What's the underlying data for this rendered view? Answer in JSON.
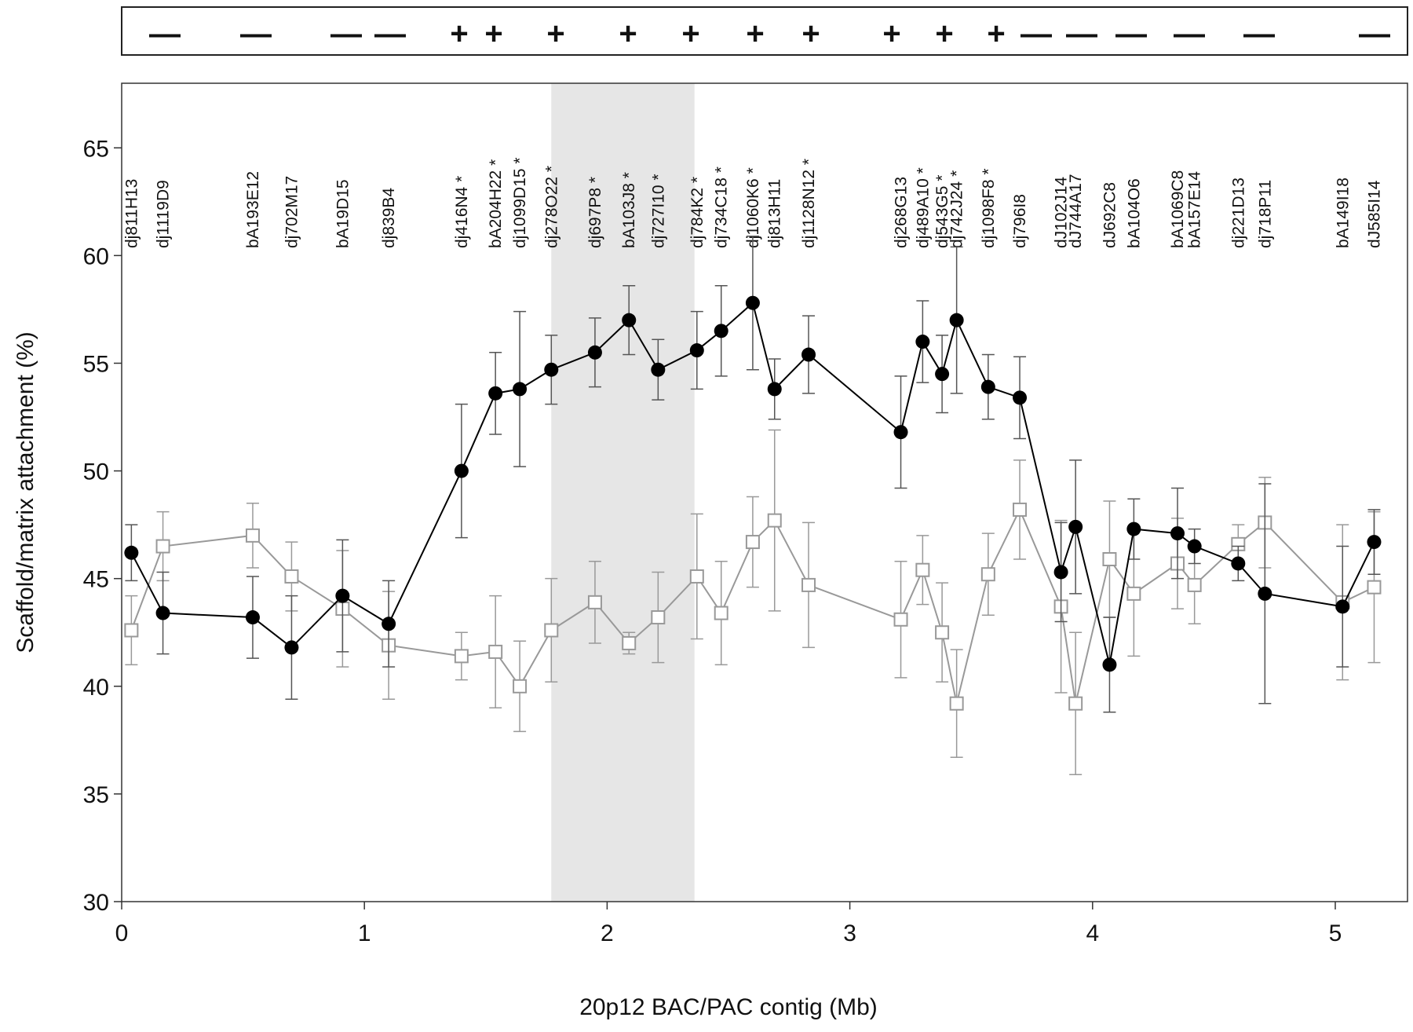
{
  "chart_data": {
    "type": "line",
    "xlabel": "20p12 BAC/PAC contig (Mb)",
    "ylabel": "Scaffold/matrix attachment (%)",
    "xlim": [
      0,
      5.3
    ],
    "ylim": [
      30,
      68
    ],
    "xticks": [
      0,
      1,
      2,
      3,
      4,
      5
    ],
    "yticks": [
      30,
      35,
      40,
      45,
      50,
      55,
      60,
      65
    ],
    "shaded_region": [
      1.77,
      2.36
    ],
    "signs": [
      "—",
      "—",
      "—",
      "—",
      "+",
      "+",
      "+",
      "+",
      "+",
      "+",
      "+",
      "+",
      "+",
      "+",
      "—",
      "—",
      "—",
      "—",
      "—",
      "—"
    ],
    "x": [
      0.04,
      0.17,
      0.54,
      0.7,
      0.91,
      1.1,
      1.4,
      1.54,
      1.64,
      1.77,
      1.95,
      2.09,
      2.21,
      2.37,
      2.47,
      2.6,
      2.69,
      2.83,
      3.21,
      3.3,
      3.38,
      3.44,
      3.57,
      3.7,
      3.87,
      3.93,
      4.07,
      4.17,
      4.35,
      4.42,
      4.6,
      4.71,
      5.03,
      5.16
    ],
    "clone_labels": [
      "dj811H13",
      "dj1119D9",
      "bA193E12",
      "dj702M17",
      "bA19D15",
      "dj839B4",
      "dj416N4 *",
      "bA204H22 *",
      "dj1099D15 *",
      "dj278O22 *",
      "dj697P8 *",
      "bA103J8 *",
      "dj727I10 *",
      "dj784K2 *",
      "dj734C18 *",
      "dj1060K6 *",
      "dj813H11",
      "dj1128N12 *",
      "dj268G13",
      "dj489A10 *",
      "dj543G5 *",
      "dj742J24 *",
      "dj1098F8 *",
      "dj796I8",
      "dJ102J14",
      "dJ744A17",
      "dJ692C8",
      "bA104O6",
      "bA1069C8",
      "bA157E14",
      "dj221D13",
      "dj718P11",
      "bA149I18",
      "dJ585I14"
    ],
    "series": [
      {
        "color": "#000000",
        "marker": "circle",
        "error_color": "#555555",
        "values": [
          46.2,
          43.4,
          43.2,
          41.8,
          44.2,
          42.9,
          50.0,
          53.6,
          53.8,
          54.7,
          55.5,
          57.0,
          54.7,
          55.6,
          56.5,
          57.8,
          53.8,
          55.4,
          51.8,
          56.0,
          54.5,
          57.0,
          53.9,
          53.4,
          45.3,
          47.4,
          41.0,
          47.3,
          47.1,
          46.5,
          45.7,
          44.3,
          43.7,
          46.7
        ],
        "errors": [
          1.3,
          1.9,
          1.9,
          2.4,
          2.6,
          2.0,
          3.1,
          1.9,
          3.6,
          1.6,
          1.6,
          1.6,
          1.4,
          1.8,
          2.1,
          3.1,
          1.4,
          1.8,
          2.6,
          1.9,
          1.8,
          3.4,
          1.5,
          1.9,
          2.3,
          3.1,
          2.2,
          1.4,
          2.1,
          0.8,
          0.8,
          5.1,
          2.8,
          1.5
        ]
      },
      {
        "color": "#999999",
        "marker": "square",
        "error_color": "#999999",
        "values": [
          42.6,
          46.5,
          47.0,
          45.1,
          43.6,
          41.9,
          41.4,
          41.6,
          40.0,
          42.6,
          43.9,
          42.0,
          43.2,
          45.1,
          43.4,
          46.7,
          47.7,
          44.7,
          43.1,
          45.4,
          42.5,
          39.2,
          45.2,
          48.2,
          43.7,
          39.2,
          45.9,
          44.3,
          45.7,
          44.7,
          46.6,
          47.6,
          43.9,
          44.6
        ],
        "errors": [
          1.6,
          1.6,
          1.5,
          1.6,
          2.7,
          2.5,
          1.1,
          2.6,
          2.1,
          2.4,
          1.9,
          0.5,
          2.1,
          2.9,
          2.4,
          2.1,
          4.2,
          2.9,
          2.7,
          1.6,
          2.3,
          2.5,
          1.9,
          2.3,
          4.0,
          3.3,
          2.7,
          2.9,
          2.1,
          1.8,
          0.9,
          2.1,
          3.6,
          3.5
        ]
      }
    ]
  }
}
